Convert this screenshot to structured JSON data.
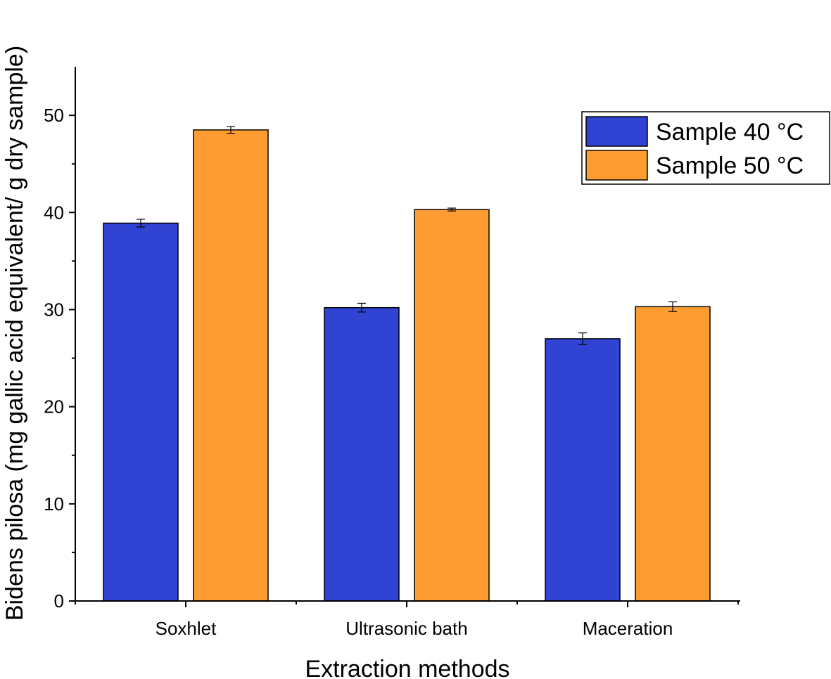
{
  "chart_data": {
    "type": "bar",
    "categories": [
      "Soxhlet",
      "Ultrasonic bath",
      "Maceration"
    ],
    "series": [
      {
        "name": "Sample 40 °C",
        "color": "#3143d2",
        "values": [
          38.9,
          30.2,
          27.0
        ],
        "errors": [
          0.4,
          0.45,
          0.6
        ]
      },
      {
        "name": "Sample 50 °C",
        "color": "#fd9d31",
        "values": [
          48.5,
          40.3,
          30.3
        ],
        "errors": [
          0.35,
          0.15,
          0.5
        ]
      }
    ],
    "xlabel": "Extraction methods",
    "ylabel": "Bidens pilosa (mg gallic acid equivalent/ g dry sample)",
    "ylim": [
      0,
      55
    ],
    "yticks": [
      0,
      10,
      20,
      30,
      40,
      50
    ],
    "grid": false,
    "legend_position": "top-right"
  }
}
